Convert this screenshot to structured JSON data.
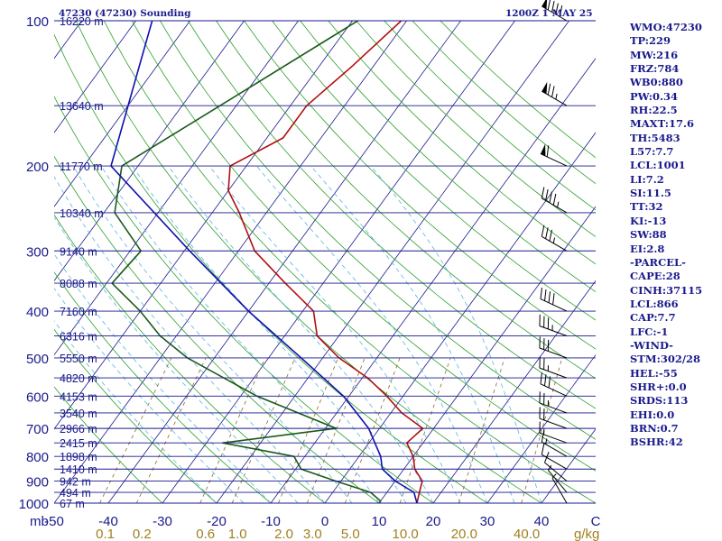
{
  "header": {
    "station": "47230 (47230) Sounding",
    "time": "1200Z  1 MAY 25"
  },
  "indices": [
    "WMO:47230",
    "TP:229",
    "MW:216",
    "FRZ:784",
    "WB0:880",
    "PW:0.34",
    "RH:22.5",
    "MAXT:17.6",
    "TH:5483",
    "L57:7.7",
    "LCL:1001",
    "LI:7.2",
    "SI:11.5",
    "TT:32",
    "KI:-13",
    "SW:88",
    "EI:2.8",
    "-PARCEL-",
    "CAPE:28",
    "CINH:37115",
    "LCL:866",
    "CAP:7.7",
    "LFC:-1",
    "-WIND-",
    "STM:302/28",
    "HEL:-55",
    "SHR+:0.0",
    "SRDS:113",
    "EHI:0.0",
    "BRN:0.7",
    "BSHR:42"
  ],
  "colors": {
    "isobar": "#1a1a8c",
    "isotherm": "#1a1a8c",
    "dry_adiabat": "#2ca02c",
    "moist_adiabat": "#5ab4e0",
    "mixing_ratio": "#8b6a2a",
    "temperature": "#b01010",
    "dewpoint": "#1a5a1a",
    "parcel": "#1010b0",
    "text": "#1a1a8c",
    "mixing_label": "#a08020"
  },
  "chart_data": {
    "type": "line",
    "title": "47230 (47230) Sounding",
    "subtitle": "1200Z  1 MAY 25",
    "xlabel": "",
    "ylabel": "mb",
    "x_unit": "C",
    "mixing_ratio_unit": "g/kg",
    "xlim": [
      -50,
      50
    ],
    "plim": [
      100,
      1000
    ],
    "scale": "log-p skew-T",
    "x_ticks": [
      "-50",
      "-40",
      "-30",
      "-20",
      "-10",
      "0",
      "10",
      "20",
      "30",
      "40"
    ],
    "p_ticks": [
      100,
      200,
      300,
      400,
      500,
      600,
      700,
      800,
      900,
      1000
    ],
    "height_labels": [
      {
        "p": 100,
        "h": "16220 m"
      },
      {
        "p": 150,
        "h": "13640 m"
      },
      {
        "p": 200,
        "h": "11770 m"
      },
      {
        "p": 250,
        "h": "10340 m"
      },
      {
        "p": 300,
        "h": "9140 m"
      },
      {
        "p": 350,
        "h": "8088 m"
      },
      {
        "p": 400,
        "h": "7160 m"
      },
      {
        "p": 450,
        "h": "6316 m"
      },
      {
        "p": 500,
        "h": "5550 m"
      },
      {
        "p": 550,
        "h": "4820 m"
      },
      {
        "p": 600,
        "h": "4153 m"
      },
      {
        "p": 650,
        "h": "3540 m"
      },
      {
        "p": 700,
        "h": "2966 m"
      },
      {
        "p": 750,
        "h": "2415 m"
      },
      {
        "p": 800,
        "h": "1898 m"
      },
      {
        "p": 850,
        "h": "1410 m"
      },
      {
        "p": 900,
        "h": "942 m"
      },
      {
        "p": 950,
        "h": "494 m"
      },
      {
        "p": 1000,
        "h": "67 m"
      }
    ],
    "mixing_ratio_labels": [
      0.1,
      0.2,
      0.6,
      1.0,
      2.0,
      3.0,
      5.0,
      10.0,
      20.0,
      40.0
    ],
    "series": [
      {
        "values": [
          {
            "p": 100,
            "t": -51
          },
          {
            "p": 125,
            "t": -54
          },
          {
            "p": 150,
            "t": -57
          },
          {
            "p": 175,
            "t": -57
          },
          {
            "p": 200,
            "t": -63
          },
          {
            "p": 225,
            "t": -60
          },
          {
            "p": 250,
            "t": -55
          },
          {
            "p": 300,
            "t": -47
          },
          {
            "p": 350,
            "t": -37
          },
          {
            "p": 400,
            "t": -28
          },
          {
            "p": 450,
            "t": -24
          },
          {
            "p": 500,
            "t": -17
          },
          {
            "p": 550,
            "t": -9
          },
          {
            "p": 600,
            "t": -3
          },
          {
            "p": 650,
            "t": 2
          },
          {
            "p": 700,
            "t": 8
          },
          {
            "p": 750,
            "t": 7
          },
          {
            "p": 800,
            "t": 10
          },
          {
            "p": 850,
            "t": 12
          },
          {
            "p": 900,
            "t": 15
          },
          {
            "p": 950,
            "t": 16
          },
          {
            "p": 1000,
            "t": 17
          }
        ]
      },
      {
        "values": [
          {
            "p": 100,
            "t": -59
          },
          {
            "p": 150,
            "t": -73
          },
          {
            "p": 200,
            "t": -83
          },
          {
            "p": 250,
            "t": -78
          },
          {
            "p": 300,
            "t": -68
          },
          {
            "p": 350,
            "t": -69
          },
          {
            "p": 400,
            "t": -60
          },
          {
            "p": 450,
            "t": -53
          },
          {
            "p": 500,
            "t": -45
          },
          {
            "p": 600,
            "t": -27
          },
          {
            "p": 700,
            "t": -8
          },
          {
            "p": 750,
            "t": -27
          },
          {
            "p": 800,
            "t": -12
          },
          {
            "p": 850,
            "t": -9
          },
          {
            "p": 900,
            "t": -1
          },
          {
            "p": 950,
            "t": 7
          },
          {
            "p": 990,
            "t": 10
          },
          {
            "p": 1000,
            "t": 10
          }
        ]
      },
      {
        "values": [
          {
            "p": 100,
            "t": -97
          },
          {
            "p": 200,
            "t": -85
          },
          {
            "p": 300,
            "t": -59
          },
          {
            "p": 400,
            "t": -40
          },
          {
            "p": 500,
            "t": -24
          },
          {
            "p": 600,
            "t": -11
          },
          {
            "p": 700,
            "t": -2
          },
          {
            "p": 800,
            "t": 4
          },
          {
            "p": 850,
            "t": 6
          },
          {
            "p": 900,
            "t": 10
          },
          {
            "p": 950,
            "t": 15
          },
          {
            "p": 1000,
            "t": 17
          }
        ]
      }
    ],
    "wind_barbs": [
      {
        "p": 100,
        "dir": 300,
        "spd": 90
      },
      {
        "p": 150,
        "dir": 300,
        "spd": 75
      },
      {
        "p": 200,
        "dir": 295,
        "spd": 60
      },
      {
        "p": 250,
        "dir": 300,
        "spd": 45
      },
      {
        "p": 300,
        "dir": 300,
        "spd": 35
      },
      {
        "p": 400,
        "dir": 295,
        "spd": 40
      },
      {
        "p": 450,
        "dir": 290,
        "spd": 35
      },
      {
        "p": 500,
        "dir": 290,
        "spd": 30
      },
      {
        "p": 550,
        "dir": 290,
        "spd": 25
      },
      {
        "p": 600,
        "dir": 295,
        "spd": 30
      },
      {
        "p": 650,
        "dir": 290,
        "spd": 25
      },
      {
        "p": 700,
        "dir": 290,
        "spd": 20
      },
      {
        "p": 750,
        "dir": 290,
        "spd": 15
      },
      {
        "p": 800,
        "dir": 300,
        "spd": 15
      },
      {
        "p": 850,
        "dir": 300,
        "spd": 10
      },
      {
        "p": 900,
        "dir": 310,
        "spd": 10
      },
      {
        "p": 950,
        "dir": 320,
        "spd": 5
      },
      {
        "p": 1000,
        "dir": 330,
        "spd": 5
      }
    ]
  }
}
